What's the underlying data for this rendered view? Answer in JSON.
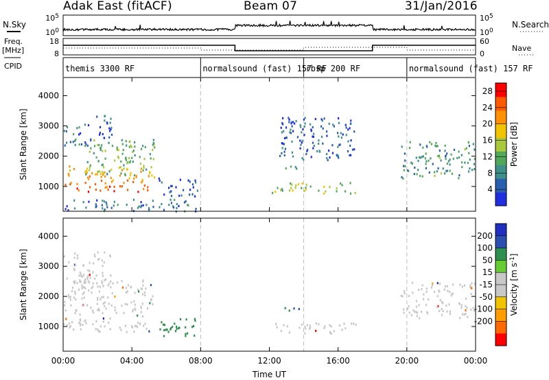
{
  "header": {
    "station": "Adak East (fitACF)",
    "beam": "Beam 07",
    "date": "31/Jan/2016"
  },
  "side_labels": {
    "nsky": "N.Sky",
    "nsearch": "N.Search",
    "freq_top": "Freq.",
    "freq_unit": "[MHz]",
    "nave": "Nave",
    "cpid": "CPID"
  },
  "noise_axis": {
    "top_left": "10^5",
    "bottom_left": "10^0",
    "top_right": "10^5",
    "bottom_right": "10^0"
  },
  "freq_axis": {
    "top_left": "18",
    "bottom_left": "8",
    "top_right": "60",
    "bottom_right": "0"
  },
  "cpid_segments": [
    {
      "label": "themis 3300 RF",
      "start": "00:00",
      "end": "08:00"
    },
    {
      "label": "normalsound (fast) 157 RF",
      "start": "08:00",
      "end": "14:00"
    },
    {
      "label": "rbsp 200 RF",
      "start": "14:00",
      "end": "20:00"
    },
    {
      "label": "normalsound (fast) 157 RF",
      "start": "20:00",
      "end": "24:00"
    }
  ],
  "colors": {
    "power": [
      "#1f2fe0",
      "#2a5fb0",
      "#3f8f8a",
      "#52a85a",
      "#a9c83e",
      "#f2c400",
      "#ff9000",
      "#ff5a00",
      "#ff0000"
    ],
    "velocity": [
      "#ff0000",
      "#ff6a00",
      "#ff9c00",
      "#f2c400",
      "#c8c8c8",
      "#c8c8c8",
      "#66cc33",
      "#2f8f4f",
      "#2a4fb0",
      "#1f2fc0"
    ]
  },
  "chart_data": [
    {
      "type": "heatmap",
      "quantity": "Power",
      "ylabel": "Slant Range [km]",
      "xlabel": "Time UT",
      "x_ticks": [
        "00:00",
        "04:00",
        "08:00",
        "12:00",
        "16:00",
        "20:00",
        "00:00"
      ],
      "x_range_hours": [
        0,
        24
      ],
      "y_ticks": [
        "1000",
        "2000",
        "3000",
        "4000"
      ],
      "ylim": [
        180,
        4600
      ],
      "colorbar": {
        "label": "Power [dB]",
        "ticks": [
          "4",
          "8",
          "12",
          "16",
          "20",
          "24",
          "28"
        ],
        "range": [
          0,
          30
        ]
      },
      "regions": [
        {
          "t0": 0.0,
          "t1": 5.3,
          "r0": 850,
          "r1": 1700,
          "power": 22
        },
        {
          "t0": 1.2,
          "t1": 5.3,
          "r0": 1400,
          "r1": 2600,
          "power": 12
        },
        {
          "t0": 0.0,
          "t1": 1.8,
          "r0": 2300,
          "r1": 3100,
          "power": 6
        },
        {
          "t0": 1.8,
          "t1": 2.8,
          "r0": 2600,
          "r1": 3500,
          "power": 5
        },
        {
          "t0": 5.5,
          "t1": 7.8,
          "r0": 700,
          "r1": 1300,
          "power": 4
        },
        {
          "t0": 12.0,
          "t1": 17.0,
          "r0": 800,
          "r1": 1150,
          "power": 14
        },
        {
          "t0": 12.8,
          "t1": 14.0,
          "r0": 1550,
          "r1": 1700,
          "power": 12
        },
        {
          "t0": 12.5,
          "t1": 17.0,
          "r0": 1900,
          "r1": 3300,
          "power": 5
        },
        {
          "t0": 19.6,
          "t1": 24.0,
          "r0": 1300,
          "r1": 2500,
          "power": 9
        },
        {
          "t0": 0.0,
          "t1": 7.8,
          "r0": 200,
          "r1": 600,
          "power": 6
        }
      ]
    },
    {
      "type": "heatmap",
      "quantity": "Velocity",
      "ylabel": "Slant Range [km]",
      "xlabel": "Time UT",
      "x_ticks": [
        "00:00",
        "04:00",
        "08:00",
        "12:00",
        "16:00",
        "20:00",
        "00:00"
      ],
      "x_range_hours": [
        0,
        24
      ],
      "y_ticks": [
        "1000",
        "2000",
        "3000",
        "4000"
      ],
      "ylim": [
        180,
        4600
      ],
      "colorbar": {
        "label": "Velocity [m s^-1]",
        "ticks": [
          "200",
          "100",
          "50",
          "15",
          "-15",
          "-50",
          "-100",
          "-200"
        ],
        "range": [
          -250,
          250
        ]
      },
      "regions": [
        {
          "t0": 0.0,
          "t1": 5.3,
          "r0": 850,
          "r1": 2600,
          "velocity": 0
        },
        {
          "t0": 0.0,
          "t1": 2.8,
          "r0": 2300,
          "r1": 3500,
          "velocity": 0
        },
        {
          "t0": 5.5,
          "t1": 7.8,
          "r0": 700,
          "r1": 1300,
          "velocity": 40
        },
        {
          "t0": 12.0,
          "t1": 17.0,
          "r0": 800,
          "r1": 1150,
          "velocity": 0
        },
        {
          "t0": 12.8,
          "t1": 14.0,
          "r0": 1550,
          "r1": 1700,
          "velocity": 80
        },
        {
          "t0": 19.6,
          "t1": 24.0,
          "r0": 1300,
          "r1": 2500,
          "velocity": 0
        }
      ]
    }
  ]
}
